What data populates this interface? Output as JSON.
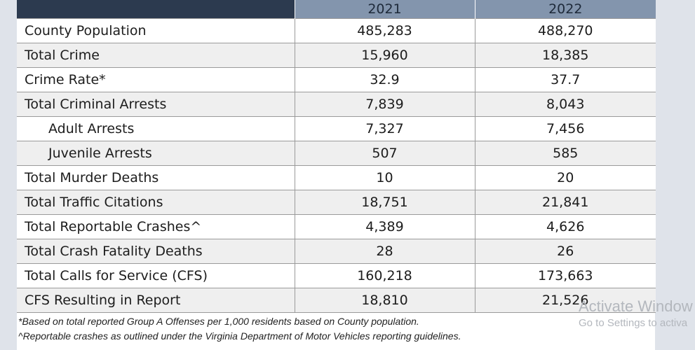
{
  "table": {
    "columns": [
      "",
      "2021",
      "2022"
    ],
    "rows": [
      {
        "label": "County Population",
        "y2021": "485,283",
        "y2022": "488,270",
        "indent": false
      },
      {
        "label": "Total Crime",
        "y2021": "15,960",
        "y2022": "18,385",
        "indent": false
      },
      {
        "label": "Crime Rate*",
        "y2021": "32.9",
        "y2022": "37.7",
        "indent": false
      },
      {
        "label": "Total Criminal Arrests",
        "y2021": "7,839",
        "y2022": "8,043",
        "indent": false
      },
      {
        "label": "Adult Arrests",
        "y2021": "7,327",
        "y2022": "7,456",
        "indent": true
      },
      {
        "label": "Juvenile Arrests",
        "y2021": "507",
        "y2022": "585",
        "indent": true
      },
      {
        "label": "Total Murder Deaths",
        "y2021": "10",
        "y2022": "20",
        "indent": false
      },
      {
        "label": "Total Traffic Citations",
        "y2021": "18,751",
        "y2022": "21,841",
        "indent": false
      },
      {
        "label": "Total Reportable Crashes^",
        "y2021": "4,389",
        "y2022": "4,626",
        "indent": false
      },
      {
        "label": "Total Crash Fatality Deaths",
        "y2021": "28",
        "y2022": "26",
        "indent": false
      },
      {
        "label": "Total Calls for Service (CFS)",
        "y2021": "160,218",
        "y2022": "173,663",
        "indent": false
      },
      {
        "label": "CFS Resulting in Report",
        "y2021": "18,810",
        "y2022": "21,526",
        "indent": false
      }
    ]
  },
  "footnotes": [
    "*Based on total reported Group A Offenses per 1,000 residents based on County population.",
    "^Reportable crashes as outlined under the Virginia Department of Motor Vehicles reporting guidelines."
  ],
  "watermark": {
    "title": "Activate Window",
    "subtitle": "Go to Settings to activa"
  },
  "colors": {
    "header_dark": "#2c3a4f",
    "header_blue": "#8395ad",
    "stripe": "#efefef",
    "background": "#dfe3ea"
  }
}
